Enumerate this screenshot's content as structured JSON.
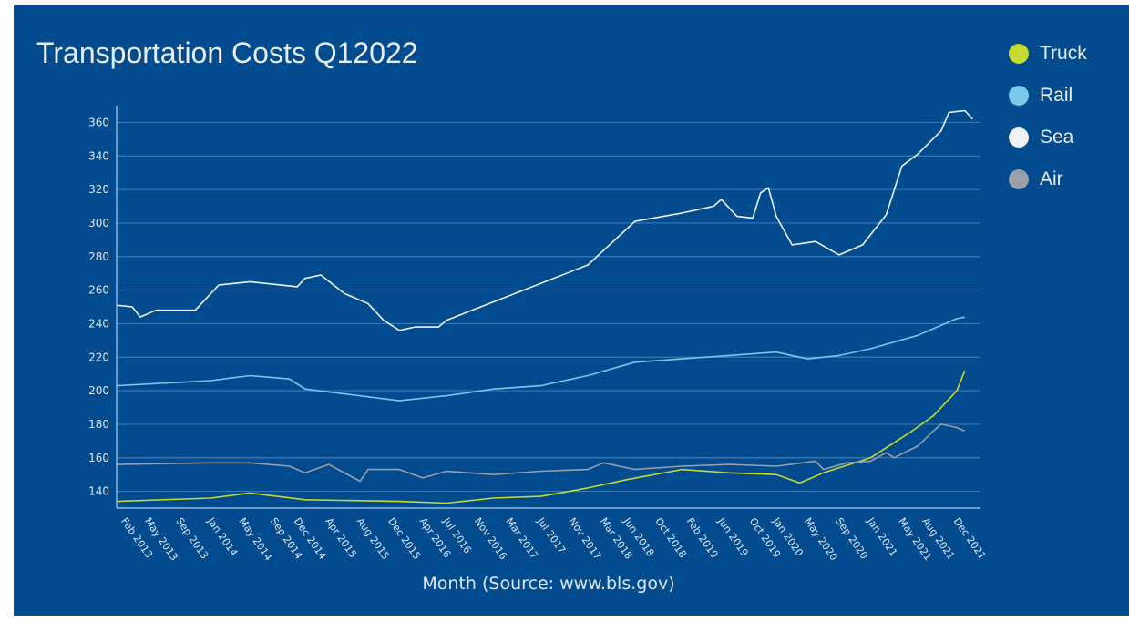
{
  "colors": {
    "background": "#024b8e",
    "grid": "#3b77b5",
    "axis": "#8ab4de",
    "text": "#dfe8f2"
  },
  "chart_data": {
    "type": "line",
    "title": "Transportation Costs Q12022",
    "xlabel": "Month (Source: www.bls.gov)",
    "ylabel": "",
    "ylim": [
      130,
      370
    ],
    "yticks": [
      140,
      160,
      180,
      200,
      220,
      240,
      260,
      280,
      300,
      320,
      340,
      360
    ],
    "grid": true,
    "legend_position": "top-right",
    "x_tick_labels": [
      "Feb 2013",
      "May 2013",
      "Sep 2013",
      "Jan 2014",
      "May 2014",
      "Sep 2014",
      "Dec 2014",
      "Apr 2015",
      "Aug 2015",
      "Dec 2015",
      "Apr 2016",
      "Jul 2016",
      "Nov 2016",
      "Mar 2017",
      "Jul 2017",
      "Nov 2017",
      "Mar 2018",
      "Jun 2018",
      "Oct 2018",
      "Feb 2019",
      "Jun 2019",
      "Oct 2019",
      "Jan 2020",
      "May 2020",
      "Sep 2020",
      "Jan 2021",
      "May 2021",
      "Aug 2021",
      "Dec 2021"
    ],
    "series": [
      {
        "name": "Truck",
        "color": "#c6d92e",
        "points": [
          [
            "Jan 2013",
            134
          ],
          [
            "Jan 2014",
            136
          ],
          [
            "Jun 2014",
            139
          ],
          [
            "Jan 2015",
            135
          ],
          [
            "Jan 2016",
            134
          ],
          [
            "Jul 2016",
            133
          ],
          [
            "Jan 2017",
            136
          ],
          [
            "Jul 2017",
            137
          ],
          [
            "Jan 2018",
            142
          ],
          [
            "Jun 2018",
            147
          ],
          [
            "Jan 2019",
            153
          ],
          [
            "Jul 2019",
            151
          ],
          [
            "Jan 2020",
            150
          ],
          [
            "Apr 2020",
            145
          ],
          [
            "Jul 2020",
            151
          ],
          [
            "Jan 2021",
            160
          ],
          [
            "Jun 2021",
            175
          ],
          [
            "Sep 2021",
            185
          ],
          [
            "Nov 2021",
            195
          ],
          [
            "Dec 2021",
            200
          ],
          [
            "Jan 2022",
            212
          ]
        ]
      },
      {
        "name": "Rail",
        "color": "#79c9ea",
        "points": [
          [
            "Jan 2013",
            203
          ],
          [
            "Jan 2014",
            206
          ],
          [
            "Jun 2014",
            209
          ],
          [
            "Nov 2014",
            207
          ],
          [
            "Jan 2015",
            201
          ],
          [
            "Jan 2016",
            194
          ],
          [
            "Jul 2016",
            197
          ],
          [
            "Jan 2017",
            201
          ],
          [
            "Jul 2017",
            203
          ],
          [
            "Jan 2018",
            209
          ],
          [
            "Jul 2018",
            217
          ],
          [
            "Jan 2019",
            219
          ],
          [
            "Jul 2019",
            221
          ],
          [
            "Jan 2020",
            223
          ],
          [
            "May 2020",
            219
          ],
          [
            "Sep 2020",
            221
          ],
          [
            "Jan 2021",
            225
          ],
          [
            "Jul 2021",
            233
          ],
          [
            "Dec 2021",
            243
          ],
          [
            "Jan 2022",
            244
          ]
        ]
      },
      {
        "name": "Sea",
        "color": "#eef2f6",
        "points": [
          [
            "Jan 2013",
            251
          ],
          [
            "Mar 2013",
            250
          ],
          [
            "Apr 2013",
            244
          ],
          [
            "Jun 2013",
            248
          ],
          [
            "Nov 2013",
            248
          ],
          [
            "Jan 2014",
            258
          ],
          [
            "Feb 2014",
            263
          ],
          [
            "Jun 2014",
            265
          ],
          [
            "Dec 2014",
            262
          ],
          [
            "Jan 2015",
            267
          ],
          [
            "Mar 2015",
            269
          ],
          [
            "Jun 2015",
            258
          ],
          [
            "Sep 2015",
            252
          ],
          [
            "Nov 2015",
            242
          ],
          [
            "Jan 2016",
            236
          ],
          [
            "Mar 2016",
            238
          ],
          [
            "Jun 2016",
            238
          ],
          [
            "Jul 2016",
            242
          ],
          [
            "Jan 2017",
            253
          ],
          [
            "Jul 2017",
            264
          ],
          [
            "Jan 2018",
            275
          ],
          [
            "Jul 2018",
            301
          ],
          [
            "Jan 2019",
            306
          ],
          [
            "May 2019",
            310
          ],
          [
            "Jun 2019",
            314
          ],
          [
            "Aug 2019",
            304
          ],
          [
            "Oct 2019",
            303
          ],
          [
            "Nov 2019",
            318
          ],
          [
            "Dec 2019",
            321
          ],
          [
            "Jan 2020",
            304
          ],
          [
            "Mar 2020",
            287
          ],
          [
            "Jun 2020",
            289
          ],
          [
            "Sep 2020",
            281
          ],
          [
            "Dec 2020",
            287
          ],
          [
            "Mar 2021",
            305
          ],
          [
            "May 2021",
            334
          ],
          [
            "Jul 2021",
            341
          ],
          [
            "Oct 2021",
            355
          ],
          [
            "Nov 2021",
            366
          ],
          [
            "Jan 2022",
            367
          ],
          [
            "Feb 2022",
            362
          ]
        ]
      },
      {
        "name": "Air",
        "color": "#9a9fa8",
        "points": [
          [
            "Jan 2013",
            156
          ],
          [
            "Jan 2014",
            157
          ],
          [
            "Jun 2014",
            157
          ],
          [
            "Nov 2014",
            155
          ],
          [
            "Jan 2015",
            151
          ],
          [
            "Apr 2015",
            156
          ],
          [
            "Aug 2015",
            146
          ],
          [
            "Sep 2015",
            153
          ],
          [
            "Jan 2016",
            153
          ],
          [
            "Apr 2016",
            148
          ],
          [
            "Jul 2016",
            152
          ],
          [
            "Jan 2017",
            150
          ],
          [
            "Jul 2017",
            152
          ],
          [
            "Jan 2018",
            153
          ],
          [
            "Mar 2018",
            157
          ],
          [
            "Jul 2018",
            153
          ],
          [
            "Jan 2019",
            155
          ],
          [
            "Jul 2019",
            156
          ],
          [
            "Jan 2020",
            155
          ],
          [
            "Jun 2020",
            158
          ],
          [
            "Jul 2020",
            153
          ],
          [
            "Oct 2020",
            157
          ],
          [
            "Jan 2021",
            158
          ],
          [
            "Mar 2021",
            163
          ],
          [
            "Apr 2021",
            160
          ],
          [
            "Jul 2021",
            167
          ],
          [
            "Sep 2021",
            176
          ],
          [
            "Oct 2021",
            180
          ],
          [
            "Dec 2021",
            178
          ],
          [
            "Jan 2022",
            176
          ]
        ]
      }
    ]
  }
}
